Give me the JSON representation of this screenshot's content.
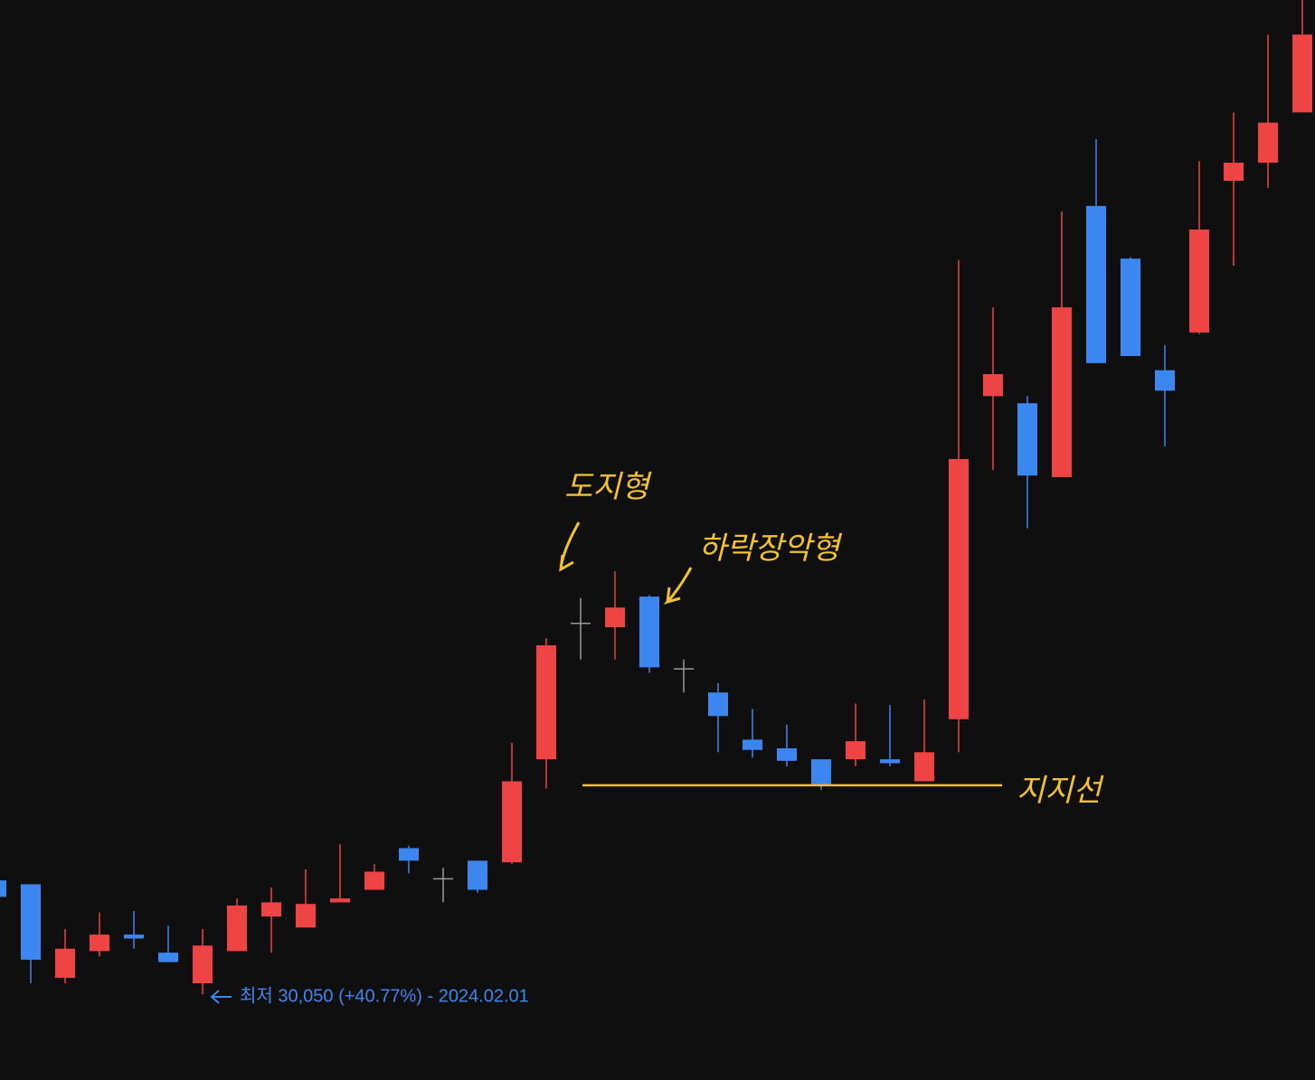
{
  "chart_data": {
    "type": "candlestick",
    "up_color": "#ef4444",
    "down_color": "#3b86ef",
    "doji_color": "#9a9a9a",
    "open": [
      31500,
      31450,
      30260,
      30600,
      30810,
      30580,
      30190,
      30600,
      31040,
      30900,
      31220,
      31380,
      31910,
      31520,
      31750,
      31730,
      33040,
      34770,
      34720,
      35110,
      34190,
      33890,
      33290,
      33180,
      33040,
      33040,
      33040,
      32760,
      33550,
      37660,
      37570,
      36630,
      40080,
      39410,
      37990,
      38470,
      40400,
      40630,
      41270
    ],
    "high": [
      31550,
      31450,
      30880,
      31090,
      31110,
      30920,
      30880,
      31270,
      31410,
      31640,
      31960,
      31710,
      31940,
      31660,
      31750,
      33250,
      34580,
      35090,
      35430,
      35130,
      34310,
      34010,
      33680,
      33480,
      33040,
      33750,
      33730,
      33800,
      39390,
      38790,
      37660,
      40010,
      40930,
      39430,
      38310,
      40650,
      41270,
      42260,
      42700
    ],
    "low": [
      31260,
      30190,
      30190,
      30530,
      30630,
      30460,
      30050,
      30600,
      30580,
      30900,
      31220,
      31380,
      31590,
      31220,
      31340,
      31710,
      32670,
      34310,
      34310,
      34140,
      33890,
      33130,
      33060,
      32950,
      32650,
      32950,
      32950,
      32760,
      33130,
      36720,
      35980,
      36630,
      38080,
      38170,
      37020,
      38450,
      39320,
      40310,
      41270
    ],
    "close": [
      31290,
      30490,
      30630,
      30810,
      30760,
      30460,
      30670,
      31180,
      31220,
      31200,
      31270,
      31610,
      31750,
      31520,
      31380,
      32760,
      34490,
      34770,
      34970,
      34210,
      34190,
      33590,
      33160,
      33020,
      32700,
      33270,
      32990,
      33130,
      36860,
      37940,
      36650,
      38790,
      38080,
      38170,
      37730,
      39780,
      40630,
      41140,
      42260
    ],
    "ylim": [
      28960,
      42700
    ],
    "support_line": {
      "label": "지지선",
      "value": 32710,
      "color": "#f2c12e"
    },
    "low_label": "최저 30,050 (+40.77%) - 2024.02.01",
    "annotations": [
      "도지형",
      "하락장악형"
    ]
  }
}
